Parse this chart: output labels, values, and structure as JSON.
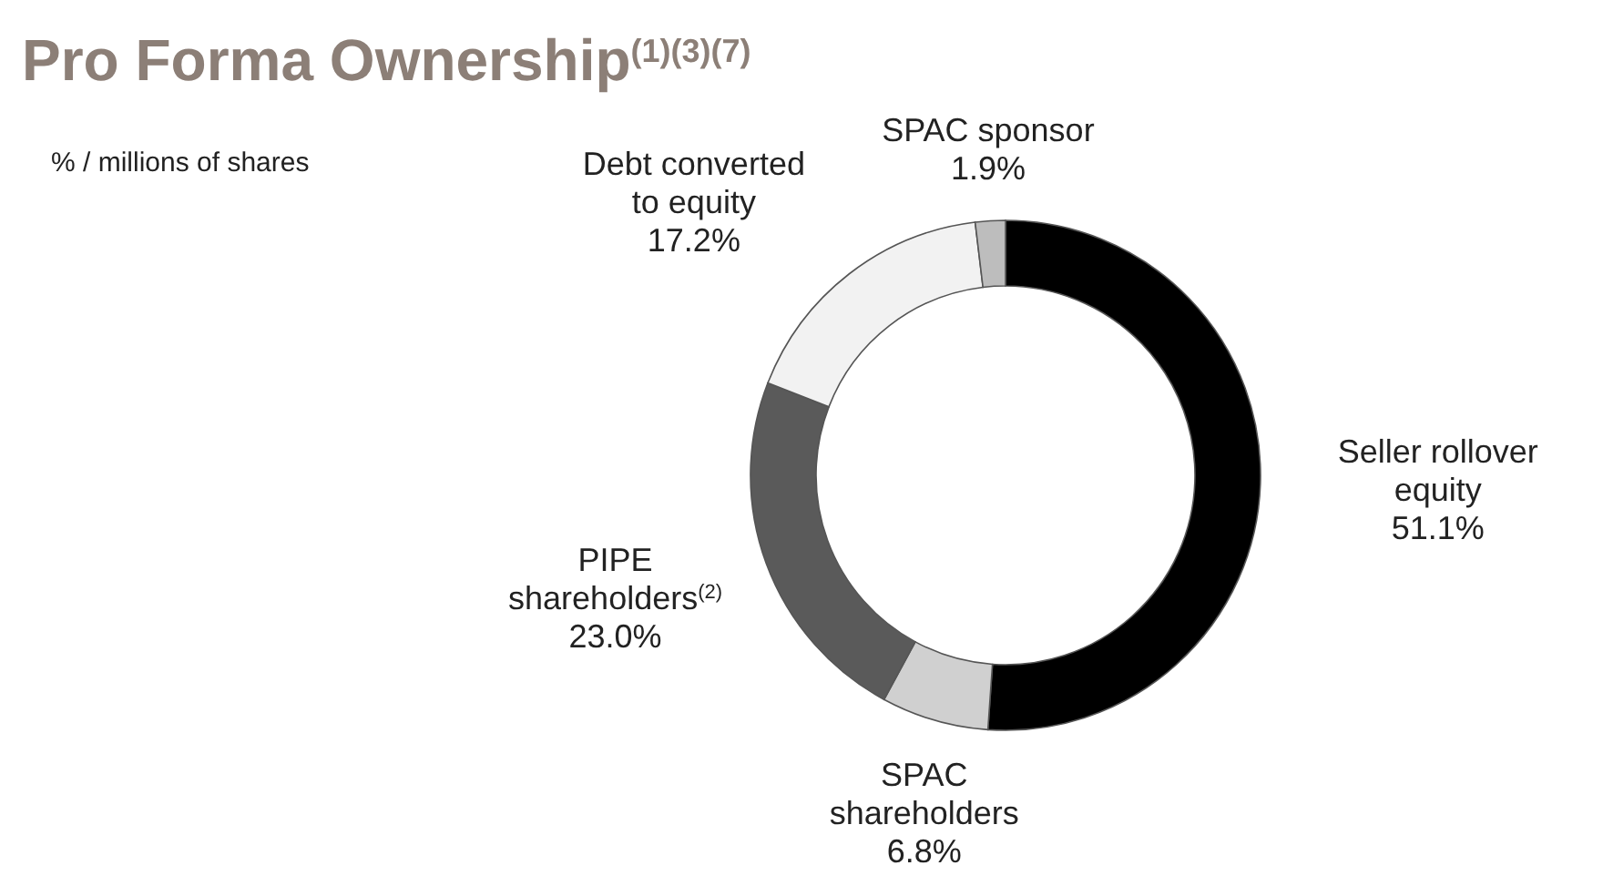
{
  "chart_data": {
    "type": "donut",
    "title": "Pro Forma Ownership$^{(1)(3)(7)}$",
    "subtitle": "% / millions of shares",
    "categories": [
      "Seller rollover equity",
      "SPAC shareholders",
      "PIPE shareholders$^{(2)}$",
      "Debt converted to equity",
      "SPAC sponsor"
    ],
    "values": [
      51.1,
      6.8,
      23.0,
      17.2,
      1.9
    ],
    "colors": [
      "#000000",
      "#d0d0d0",
      "#5a5a5a",
      "#f2f2f2",
      "#bdbdbd"
    ],
    "value_labels": [
      "51.1%",
      "6.8%",
      "23.0%",
      "17.2%",
      "1.9%"
    ]
  }
}
